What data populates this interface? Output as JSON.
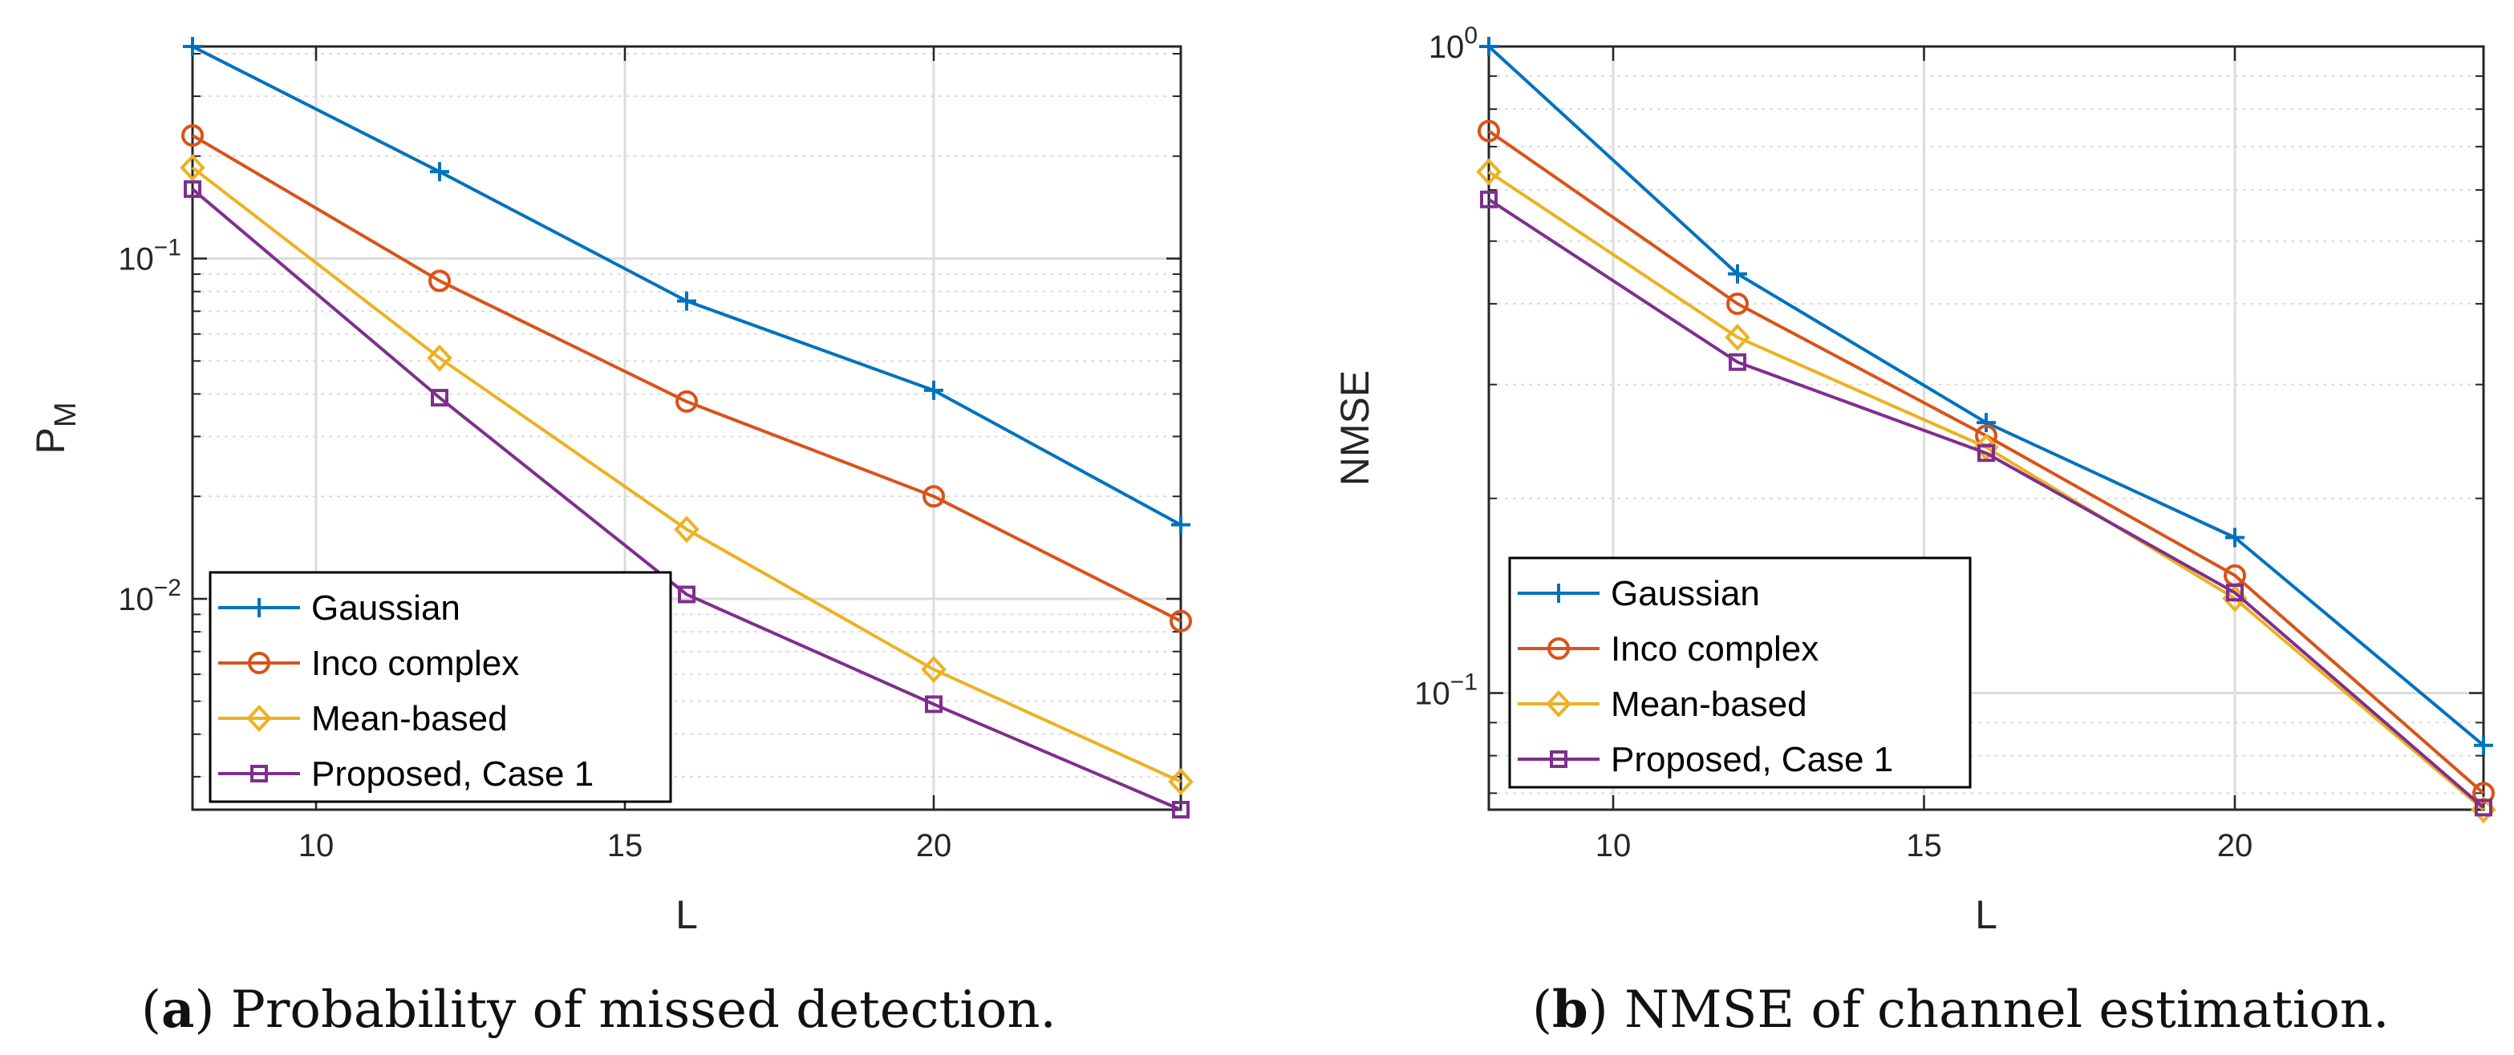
{
  "colors": {
    "gaussian": "#0072BD",
    "inco_complex": "#D95319",
    "mean_based": "#EDB120",
    "proposed": "#7E2F8E",
    "grid": "#dcdcdc",
    "axis": "#262626"
  },
  "captions": [
    {
      "letter": "a",
      "open": "(",
      "close": ")",
      "text": " Probability of missed detection."
    },
    {
      "letter": "b",
      "open": "(",
      "close": ")",
      "text": " NMSE of channel estimation."
    }
  ],
  "chart_data": [
    {
      "type": "line",
      "yscale": "log",
      "xlabel": "L",
      "ylabel": "P",
      "ylabel_sub": "M",
      "xlim": [
        8,
        24
      ],
      "ylim": [
        0.0024,
        0.42
      ],
      "xticks": [
        10,
        15,
        20
      ],
      "ytick_labels": [
        {
          "value": 0.1,
          "base": "10",
          "exp": "−1"
        },
        {
          "value": 0.01,
          "base": "10",
          "exp": "−2"
        }
      ],
      "legend_location": "bottom-left",
      "x": [
        8,
        12,
        16,
        20,
        24
      ],
      "series": [
        {
          "name": "Gaussian",
          "marker": "plus",
          "color_key": "gaussian",
          "values": [
            0.42,
            0.18,
            0.075,
            0.041,
            0.0165
          ]
        },
        {
          "name": "Inco complex",
          "marker": "circle",
          "color_key": "inco_complex",
          "values": [
            0.23,
            0.086,
            0.038,
            0.02,
            0.0086
          ]
        },
        {
          "name": "Mean-based",
          "marker": "diamond",
          "color_key": "mean_based",
          "values": [
            0.185,
            0.051,
            0.016,
            0.0062,
            0.0029
          ]
        },
        {
          "name": "Proposed, Case 1",
          "marker": "square",
          "color_key": "proposed",
          "values": [
            0.16,
            0.039,
            0.0103,
            0.0049,
            0.0024
          ]
        }
      ]
    },
    {
      "type": "line",
      "yscale": "log",
      "xlabel": "L",
      "ylabel": "NMSE",
      "ylabel_sub": "",
      "xlim": [
        8,
        24
      ],
      "ylim": [
        0.066,
        1.0
      ],
      "xticks": [
        10,
        15,
        20
      ],
      "ytick_labels": [
        {
          "value": 1.0,
          "base": "10",
          "exp": "0"
        },
        {
          "value": 0.1,
          "base": "10",
          "exp": "−1"
        }
      ],
      "legend_location": "bottom-left",
      "x": [
        8,
        12,
        16,
        20,
        24
      ],
      "series": [
        {
          "name": "Gaussian",
          "marker": "plus",
          "color_key": "gaussian",
          "values": [
            1.0,
            0.445,
            0.262,
            0.174,
            0.083
          ]
        },
        {
          "name": "Inco complex",
          "marker": "circle",
          "color_key": "inco_complex",
          "values": [
            0.74,
            0.4,
            0.25,
            0.152,
            0.07
          ]
        },
        {
          "name": "Mean-based",
          "marker": "diamond",
          "color_key": "mean_based",
          "values": [
            0.64,
            0.355,
            0.24,
            0.14,
            0.066
          ]
        },
        {
          "name": "Proposed, Case 1",
          "marker": "square",
          "color_key": "proposed",
          "values": [
            0.58,
            0.325,
            0.235,
            0.143,
            0.0665
          ]
        }
      ]
    }
  ]
}
